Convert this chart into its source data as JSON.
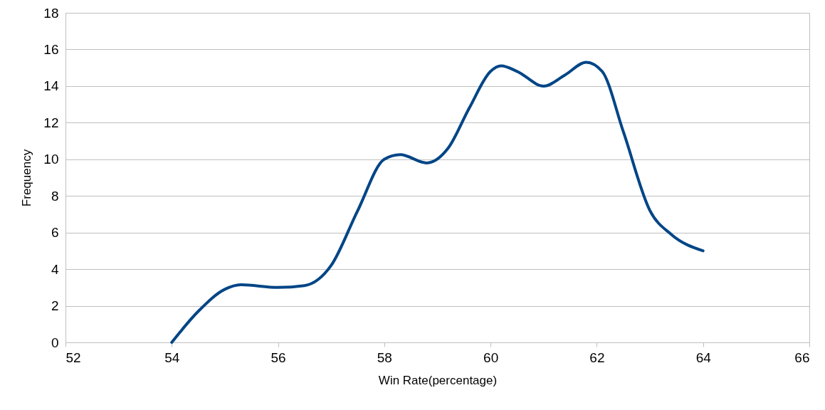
{
  "chart_data": {
    "type": "line",
    "xlabel": "Win Rate(percentage)",
    "ylabel": "Frequency",
    "xlim": [
      52,
      66
    ],
    "xticks": [
      52,
      54,
      56,
      58,
      60,
      62,
      64,
      66
    ],
    "ylim": [
      0,
      18
    ],
    "yticks": [
      0,
      2,
      4,
      6,
      8,
      10,
      12,
      14,
      16,
      18
    ],
    "grid": "y",
    "marker": "none",
    "line_style": "solid",
    "series": [
      {
        "color": "#004586",
        "x": [
          54,
          54.5,
          55,
          55.3,
          56,
          56.5,
          57,
          57.5,
          58,
          58.3,
          58.8,
          59.2,
          59.6,
          60,
          60.2,
          60.5,
          61,
          61.4,
          61.8,
          62.1,
          62.5,
          63,
          63.4,
          64
        ],
        "values": [
          0,
          1.7,
          2.9,
          3.15,
          3.0,
          3.1,
          4.2,
          7.2,
          10.0,
          10.25,
          9.8,
          10.6,
          12.8,
          14.8,
          15.1,
          14.8,
          14.0,
          14.6,
          15.3,
          14.8,
          11.5,
          7.2,
          5.9,
          5.0
        ]
      }
    ]
  }
}
